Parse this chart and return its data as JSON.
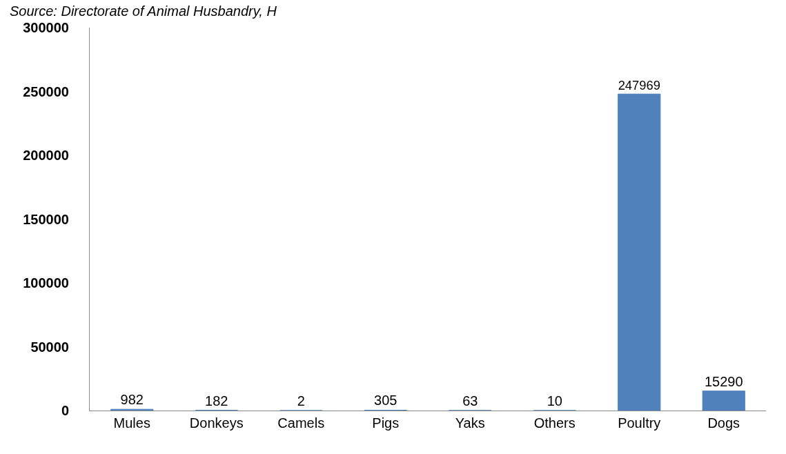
{
  "chart_data": {
    "type": "bar",
    "categories": [
      "Mules",
      "Donkeys",
      "Camels",
      "Pigs",
      "Yaks",
      "Others",
      "Poultry",
      "Dogs"
    ],
    "values": [
      982,
      182,
      2,
      305,
      63,
      10,
      247969,
      15290
    ],
    "color": "#4f81bd",
    "ylim": [
      0,
      300000
    ],
    "yticks": [
      0,
      50000,
      100000,
      150000,
      200000,
      250000,
      300000
    ],
    "data_labels": true,
    "annotations": [
      "Source: Directorate of Animal Husbandry, H"
    ]
  }
}
